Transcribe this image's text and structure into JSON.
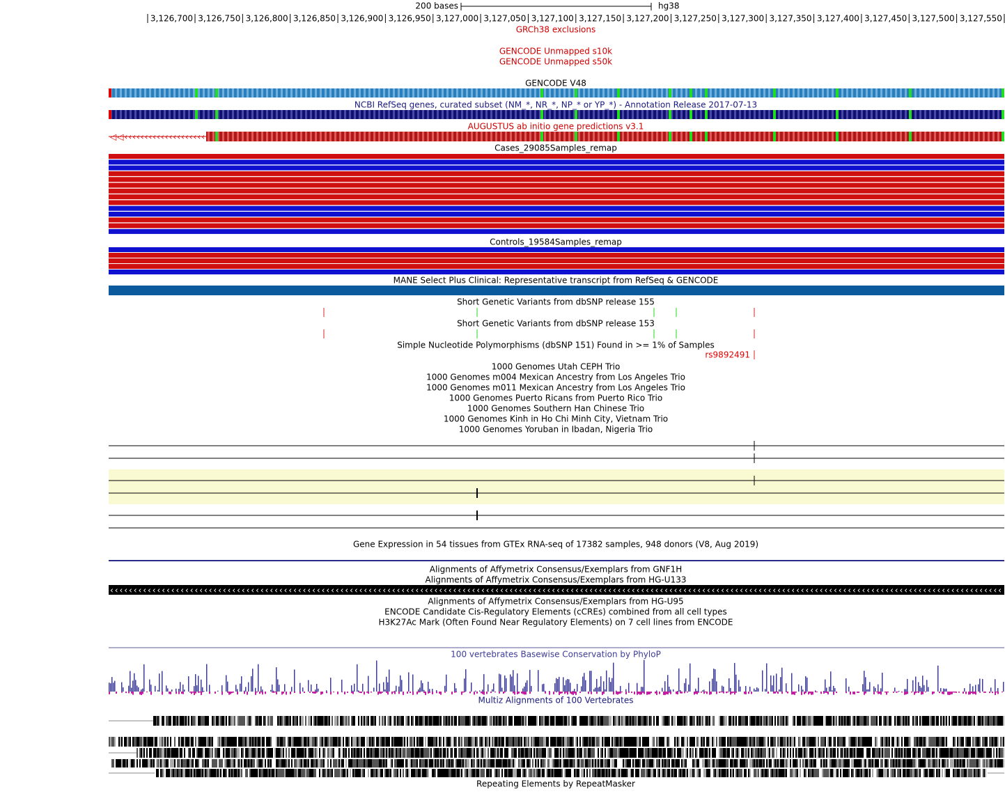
{
  "ruler": {
    "scale_label": "200 bases",
    "assembly": "hg38",
    "positions": [
      "3,126,700",
      "3,126,750",
      "3,126,800",
      "3,126,850",
      "3,126,900",
      "3,126,950",
      "3,127,000",
      "3,127,050",
      "3,127,100",
      "3,127,150",
      "3,127,200",
      "3,127,250",
      "3,127,300",
      "3,127,350",
      "3,127,400",
      "3,127,450",
      "3,127,500",
      "3,127,550"
    ]
  },
  "tracks": [
    {
      "title": "GRCh38 exclusions"
    },
    {
      "title": "GENCODE Unmapped s10k"
    },
    {
      "title": "GENCODE Unmapped s50k"
    },
    {
      "title": "GENCODE V48"
    },
    {
      "title": "NCBI RefSeq genes, curated subset (NM_*, NR_*, NP_* or YP_*) - Annotation Release 2017-07-13"
    },
    {
      "title": "AUGUSTUS ab initio gene predictions v3.1"
    },
    {
      "title": "Cases_29085Samples_remap"
    },
    {
      "title": "Controls_19584Samples_remap"
    },
    {
      "title": "MANE Select Plus Clinical: Representative transcript from RefSeq & GENCODE"
    },
    {
      "title": "Short Genetic Variants from dbSNP release 155"
    },
    {
      "title": "Short Genetic Variants from dbSNP release 153"
    },
    {
      "title": "Simple Nucleotide Polymorphisms (dbSNP 151) Found in >= 1% of Samples"
    },
    {
      "title": "1000 Genomes Utah CEPH Trio"
    },
    {
      "title": "1000 Genomes m004 Mexican Ancestry from Los Angeles Trio"
    },
    {
      "title": "1000 Genomes m011 Mexican Ancestry from Los Angeles Trio"
    },
    {
      "title": "1000 Genomes Puerto Ricans from Puerto Rico Trio"
    },
    {
      "title": "1000 Genomes Southern Han Chinese Trio"
    },
    {
      "title": "1000 Genomes Kinh in Ho Chi Minh City, Vietnam Trio"
    },
    {
      "title": "1000 Genomes Yoruban in Ibadan, Nigeria Trio"
    },
    {
      "title": "Gene Expression in 54 tissues from GTEx RNA-seq of 17382 samples, 948 donors (V8, Aug 2019)"
    },
    {
      "title": "Alignments of Affymetrix Consensus/Exemplars from GNF1H"
    },
    {
      "title": "Alignments of Affymetrix Consensus/Exemplars from HG-U133"
    },
    {
      "title": "Alignments of Affymetrix Consensus/Exemplars from HG-U95"
    },
    {
      "title": "ENCODE Candidate Cis-Regulatory Elements (cCREs) combined from all cell types"
    },
    {
      "title": "H3K27Ac Mark (Often Found Near Regulatory Elements) on 7 cell lines from ENCODE"
    },
    {
      "title": "100 vertebrates Basewise Conservation by PhyloP"
    },
    {
      "title": "Multiz Alignments of 100 Vertebrates"
    },
    {
      "title": "Repeating Elements by RepeatMasker"
    }
  ],
  "snp_label": "rs9892491"
}
